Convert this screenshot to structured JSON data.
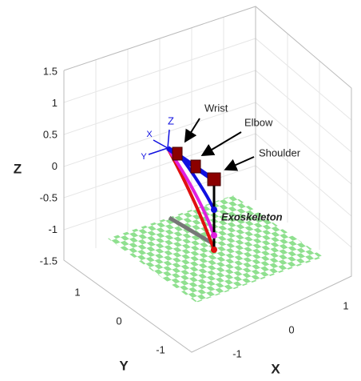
{
  "axes": {
    "z": {
      "label": "Z",
      "ticks": [
        1.5,
        1,
        0.5,
        0,
        -0.5,
        -1,
        -1.5
      ]
    },
    "y": {
      "label": "Y",
      "ticks": [
        1,
        0,
        -1
      ]
    },
    "x": {
      "label": "X",
      "ticks": [
        -1,
        0,
        1
      ]
    }
  },
  "annotations": {
    "wrist": "Wrist",
    "elbow": "Elbow",
    "shoulder": "Shoulder",
    "exoskeleton": "Exoskeleton"
  },
  "frame_labels": {
    "x": "X",
    "y": "Y",
    "z": "Z"
  }
}
